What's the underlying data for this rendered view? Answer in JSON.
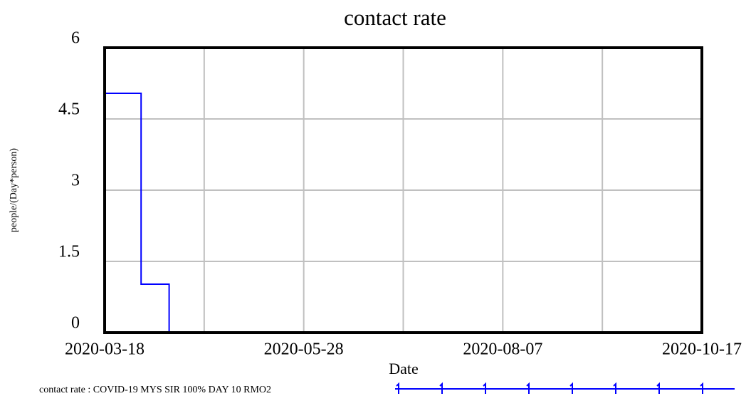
{
  "chart_data": {
    "type": "line",
    "step": "post",
    "title": "contact rate",
    "x_label": "Date",
    "y_label": "people/(Day*person)",
    "x": [
      "2020-03-18",
      "2020-03-31",
      "2020-04-10",
      "2020-10-17"
    ],
    "series": [
      {
        "name": "contact rate : COVID-19 MYS SIR 100% DAY 10 RMO2",
        "color": "#0000ff",
        "values": [
          5.04,
          1.02,
          0,
          0
        ]
      }
    ],
    "xlim": [
      "2020-03-18",
      "2020-10-17"
    ],
    "xticks": [
      "2020-03-18",
      "2020-05-28",
      "2020-08-07",
      "2020-10-17"
    ],
    "ylim": [
      0,
      6
    ],
    "yticks": [
      0,
      1.5,
      3,
      4.5,
      6
    ],
    "grid": true
  }
}
